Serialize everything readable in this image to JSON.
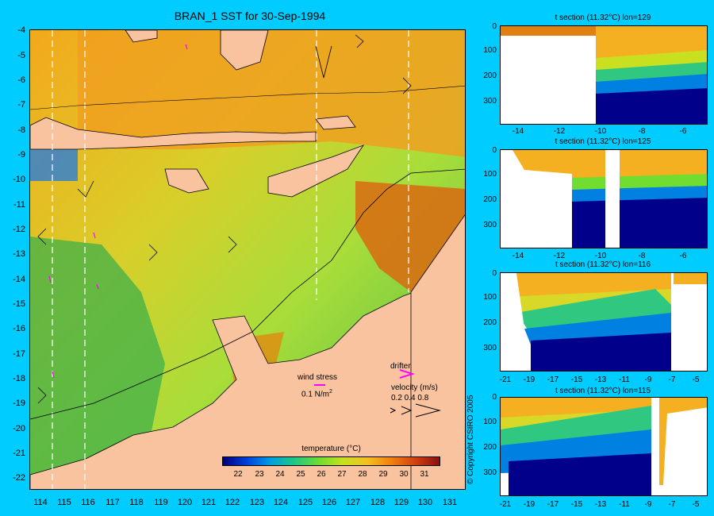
{
  "map": {
    "title": "BRAN_1 SST for 30-Sep-1994",
    "y_labels": [
      "-4",
      "-5",
      "-6",
      "-7",
      "-8",
      "-9",
      "-10",
      "-11",
      "-12",
      "-13",
      "-14",
      "-15",
      "-16",
      "-17",
      "-18",
      "-19",
      "-20",
      "-21",
      "-22"
    ],
    "x_labels": [
      "114",
      "115",
      "116",
      "117",
      "118",
      "119",
      "120",
      "121",
      "122",
      "123",
      "124",
      "125",
      "126",
      "127",
      "128",
      "129",
      "130",
      "131"
    ],
    "wind_stress_label": "wind stress",
    "wind_stress_value": "0.1 N/m",
    "wind_stress_sup": "2",
    "drifter_label": "drifter",
    "velocity_label": "velocity (m/s)",
    "velocity_values": "0.2 0.4 0.8",
    "colorbar_title": "temperature (°C)",
    "colorbar_ticks": [
      "22",
      "23",
      "24",
      "25",
      "26",
      "27",
      "28",
      "29",
      "30",
      "31"
    ]
  },
  "sections": [
    {
      "title": "t section (11.32°C) lon=129",
      "y_labels": [
        "0",
        "100",
        "200",
        "300"
      ],
      "x_labels": [
        "-14",
        "-12",
        "-10",
        "-8",
        "-6"
      ]
    },
    {
      "title": "t section (11.32°C) lon=125",
      "y_labels": [
        "0",
        "100",
        "200",
        "300"
      ],
      "x_labels": [
        "-14",
        "-12",
        "-10",
        "-8",
        "-6"
      ]
    },
    {
      "title": "t section (11.32°C) lon=116",
      "y_labels": [
        "0",
        "100",
        "200",
        "300"
      ],
      "x_labels": [
        "-21",
        "-19",
        "-17",
        "-15",
        "-13",
        "-11",
        "-9",
        "-7",
        "-5"
      ]
    },
    {
      "title": "t section (11.32°C) lon=115",
      "y_labels": [
        "0",
        "100",
        "200",
        "300"
      ],
      "x_labels": [
        "-21",
        "-19",
        "-17",
        "-15",
        "-13",
        "-11",
        "-9",
        "-7",
        "-5"
      ]
    }
  ],
  "copyright": "© Copyright CSIRO 2005",
  "colors": {
    "background": "#00ccff",
    "land": "#f9c3a0",
    "arrow": "#ff00ff"
  }
}
